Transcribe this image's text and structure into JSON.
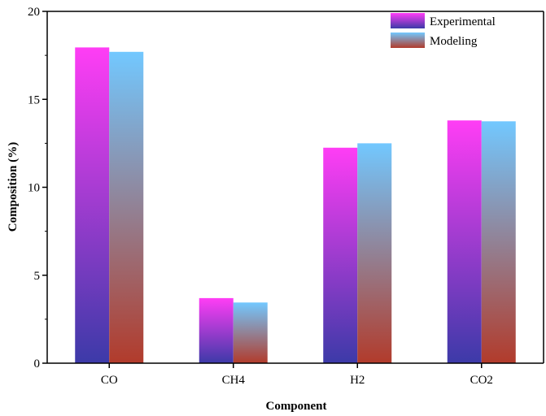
{
  "chart_data": {
    "type": "bar",
    "categories": [
      "CO",
      "CH4",
      "H2",
      "CO2"
    ],
    "series": [
      {
        "name": "Experimental",
        "values": [
          17.95,
          3.7,
          12.25,
          13.8
        ],
        "gradient": [
          "#ff3df5",
          "#3c3aa8"
        ]
      },
      {
        "name": "Modeling",
        "values": [
          17.7,
          3.45,
          12.5,
          13.75
        ],
        "gradient": [
          "#72c8ff",
          "#b23b2b"
        ]
      }
    ],
    "xlabel": "Component",
    "ylabel": "Composition (%)",
    "ylim": [
      0,
      20
    ],
    "yticks": [
      0,
      5,
      10,
      15,
      20
    ],
    "legend_position": "top-right",
    "grid": false
  }
}
